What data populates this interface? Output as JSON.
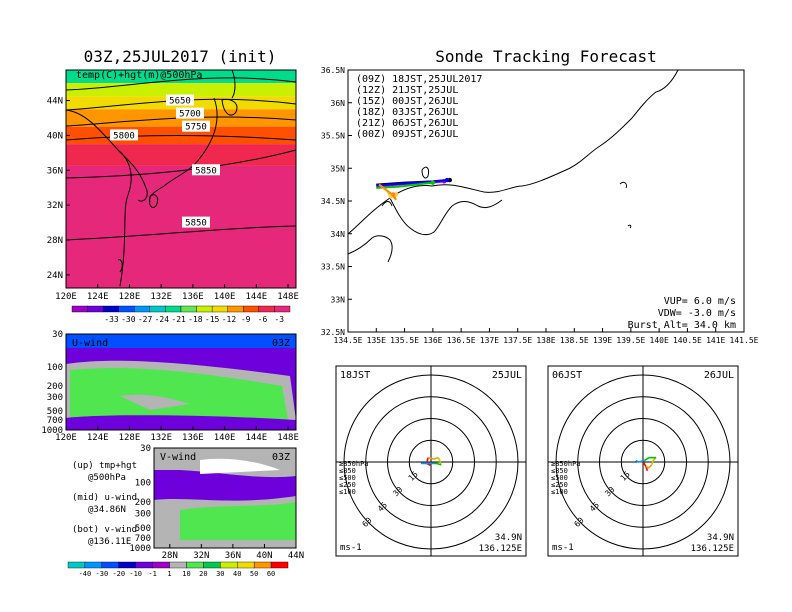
{
  "colors": {
    "temp": [
      "#a000c8",
      "#6e00dc",
      "#0000c8",
      "#0050ff",
      "#0096ff",
      "#00c8c8",
      "#00dc8c",
      "#64e650",
      "#c8f000",
      "#f0dc00",
      "#ff9600",
      "#ff5000",
      "#f02850",
      "#e6287a"
    ],
    "wind": [
      "#00c8c8",
      "#0096ff",
      "#0050ff",
      "#0000c8",
      "#6e00dc",
      "#a000c8",
      "#b4b4b4",
      "#50e650",
      "#00c850",
      "#c8f000",
      "#f0dc00",
      "#ff9600",
      "#ff0000"
    ],
    "track": {
      "09Z": "#000000",
      "12Z": "#a000c8",
      "15Z": "#0000ff",
      "18Z": "#00c800",
      "21Z": "#ffc850",
      "00Z": "#ff8c00"
    },
    "alt": {
      "ge850": "#ff0000",
      "le850": "#ff9600",
      "le500": "#c8c800",
      "le250": "#00c800",
      "le100": "#0096ff"
    }
  },
  "icons": [
    "balloon-trajectory-marker"
  ],
  "chart_data": [
    {
      "type": "heatmap",
      "name": "upper-air-map",
      "title": "03Z,25JUL2017 (init)",
      "subtitle": "temp(C)+hgt(m)@500hPa",
      "x_ticks": [
        "120E",
        "124E",
        "128E",
        "132E",
        "136E",
        "140E",
        "144E",
        "148E"
      ],
      "y_ticks": [
        "24N",
        "28N",
        "32N",
        "36N",
        "40N",
        "44N"
      ],
      "xlim": [
        120,
        149
      ],
      "ylim": [
        22.5,
        47.5
      ],
      "contours": [
        {
          "label": "5650",
          "lat": 44.0
        },
        {
          "label": "5700",
          "lat": 42.5
        },
        {
          "label": "5750",
          "lat": 41.0
        },
        {
          "label": "5800",
          "lat": 40.0
        },
        {
          "label": "5850",
          "lat": 36.0
        },
        {
          "label": "5850",
          "lat": 30.0
        }
      ],
      "colorbar": [
        "-33",
        "-30",
        "-27",
        "-24",
        "-21",
        "-18",
        "-15",
        "-12",
        "-9",
        "-6",
        "-3"
      ]
    },
    {
      "type": "heatmap",
      "name": "u-wind-section",
      "title": "U-wind",
      "time_label": "03Z",
      "x_ticks": [
        "120E",
        "124E",
        "128E",
        "132E",
        "136E",
        "140E",
        "144E",
        "148E"
      ],
      "y_ticks": [
        "30",
        "100",
        "200",
        "300",
        "500",
        "700",
        "1000"
      ],
      "xlim": [
        120,
        149
      ]
    },
    {
      "type": "heatmap",
      "name": "v-wind-section",
      "title": "V-wind",
      "time_label": "03Z",
      "x_ticks": [
        "28N",
        "32N",
        "36N",
        "40N",
        "44N"
      ],
      "y_ticks": [
        "30",
        "100",
        "200",
        "300",
        "500",
        "700",
        "1000"
      ],
      "xlim": [
        26,
        44
      ]
    },
    {
      "type": "line",
      "name": "sonde-track-map",
      "title": "Sonde Tracking Forecast",
      "x_ticks": [
        "134.5E",
        "135E",
        "135.5E",
        "136E",
        "136.5E",
        "137E",
        "137.5E",
        "138E",
        "138.5E",
        "139E",
        "139.5E",
        "140E",
        "140.5E",
        "141E",
        "141.5E"
      ],
      "y_ticks": [
        "32.5N",
        "33N",
        "33.5N",
        "34N",
        "34.5N",
        "35N",
        "35.5N",
        "36N",
        "36.5N"
      ],
      "xlim": [
        134.5,
        141.5
      ],
      "ylim": [
        32.5,
        36.5
      ],
      "legend": [
        {
          "key": "09Z",
          "text": "(09Z)  18JST,25JUL2017"
        },
        {
          "key": "12Z",
          "text": "(12Z)  21JST,25JUL"
        },
        {
          "key": "15Z",
          "text": "(15Z)  00JST,26JUL"
        },
        {
          "key": "18Z",
          "text": "(18Z)  03JST,26JUL"
        },
        {
          "key": "21Z",
          "text": "(21Z)  06JST,26JUL"
        },
        {
          "key": "00Z",
          "text": "(00Z)  09JST,26JUL"
        }
      ],
      "info": [
        "VUP=  6.0 m/s",
        "VDW= -3.0 m/s",
        "Burst Alt= 34.0 km"
      ],
      "series": [
        {
          "key": "09Z",
          "points": [
            [
              135.0,
              34.75
            ],
            [
              135.5,
              34.78
            ],
            [
              136.0,
              34.8
            ],
            [
              136.3,
              34.82
            ]
          ]
        },
        {
          "key": "12Z",
          "points": [
            [
              135.0,
              34.72
            ],
            [
              135.5,
              34.76
            ],
            [
              136.0,
              34.78
            ],
            [
              136.2,
              34.8
            ]
          ]
        },
        {
          "key": "15Z",
          "points": [
            [
              135.0,
              34.74
            ],
            [
              135.5,
              34.77
            ],
            [
              136.0,
              34.8
            ],
            [
              136.25,
              34.82
            ]
          ]
        },
        {
          "key": "18Z",
          "points": [
            [
              135.0,
              34.7
            ],
            [
              135.4,
              34.72
            ],
            [
              135.8,
              34.76
            ],
            [
              136.0,
              34.78
            ]
          ]
        },
        {
          "key": "21Z",
          "points": [
            [
              135.05,
              34.75
            ],
            [
              135.2,
              34.65
            ],
            [
              135.25,
              34.55
            ],
            [
              135.35,
              34.6
            ]
          ]
        },
        {
          "key": "00Z",
          "points": [
            [
              135.05,
              34.75
            ],
            [
              135.25,
              34.62
            ],
            [
              135.35,
              34.52
            ],
            [
              135.3,
              34.6
            ]
          ]
        }
      ]
    },
    {
      "type": "line",
      "name": "hodograph-18jst",
      "time_label": "18JST",
      "date_label": "25JUL",
      "ring_labels": [
        "15",
        "30",
        "45",
        "60"
      ],
      "unit": "ms-1",
      "loc": [
        "34.9N",
        "136.125E"
      ],
      "alt_legend": [
        {
          "key": "ge850",
          "text": "≥850hPa"
        },
        {
          "key": "le850",
          "text": "≤850"
        },
        {
          "key": "le500",
          "text": "≤500"
        },
        {
          "key": "le250",
          "text": "≤250"
        },
        {
          "key": "le100",
          "text": "≤100"
        }
      ],
      "series": [
        {
          "key": "ge850",
          "points": [
            [
              0,
              0
            ],
            [
              -1,
              -2
            ],
            [
              -3,
              -1
            ],
            [
              -2,
              3
            ]
          ]
        },
        {
          "key": "le850",
          "points": [
            [
              -2,
              3
            ],
            [
              2,
              2
            ],
            [
              5,
              3
            ]
          ]
        },
        {
          "key": "le500",
          "points": [
            [
              5,
              3
            ],
            [
              6,
              1
            ],
            [
              7,
              -2
            ]
          ]
        },
        {
          "key": "le250",
          "points": [
            [
              7,
              -2
            ],
            [
              4,
              -1
            ],
            [
              2,
              -1
            ]
          ]
        },
        {
          "key": "le100",
          "points": [
            [
              2,
              -1
            ],
            [
              -3,
              -1
            ],
            [
              -7,
              -1
            ]
          ]
        }
      ]
    },
    {
      "type": "line",
      "name": "hodograph-06jst",
      "time_label": "06JST",
      "date_label": "26JUL",
      "ring_labels": [
        "15",
        "30",
        "45",
        "60"
      ],
      "unit": "ms-1",
      "loc": [
        "34.9N",
        "136.125E"
      ],
      "alt_legend": [
        {
          "key": "ge850",
          "text": "≥850hPa"
        },
        {
          "key": "le850",
          "text": "≤850"
        },
        {
          "key": "le500",
          "text": "≤500"
        },
        {
          "key": "le250",
          "text": "≤250"
        },
        {
          "key": "le100",
          "text": "≤100"
        }
      ],
      "series": [
        {
          "key": "ge850",
          "points": [
            [
              0,
              0
            ],
            [
              2,
              -3
            ],
            [
              3,
              -6
            ]
          ]
        },
        {
          "key": "le850",
          "points": [
            [
              2,
              -3
            ],
            [
              4,
              -4
            ],
            [
              6,
              -2
            ]
          ]
        },
        {
          "key": "le500",
          "points": [
            [
              6,
              -2
            ],
            [
              7,
              1
            ],
            [
              9,
              3
            ]
          ]
        },
        {
          "key": "le250",
          "points": [
            [
              9,
              3
            ],
            [
              4,
              3
            ],
            [
              1,
              1
            ]
          ]
        },
        {
          "key": "le100",
          "points": [
            [
              1,
              1
            ],
            [
              -3,
              0
            ],
            [
              -5,
              1
            ]
          ]
        }
      ]
    }
  ],
  "notes": {
    "up": [
      "(up) tmp+hgt",
      "@500hPa"
    ],
    "mid": [
      "(mid) u-wind",
      "@34.86N"
    ],
    "bot": [
      "(bot) v-wind",
      "@136.11E"
    ],
    "wind_colorbar": [
      "-40",
      "-30",
      "-20",
      "-10",
      "-1",
      "1",
      "10",
      "20",
      "30",
      "40",
      "50",
      "60"
    ]
  }
}
